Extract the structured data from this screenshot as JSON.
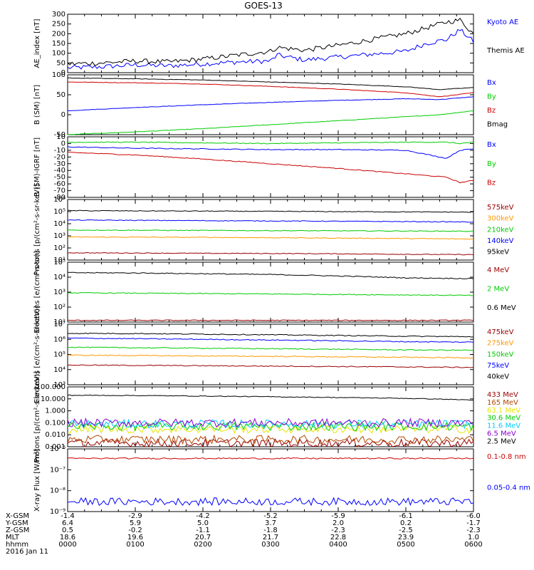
{
  "title": "GOES-13",
  "time_ticks": [
    "0000",
    "0100",
    "0200",
    "0300",
    "0400",
    "0500",
    "0600"
  ],
  "ephemeris": {
    "rows": [
      {
        "label": "X-GSM",
        "values": [
          "-1.4",
          "-2.9",
          "-4.2",
          "-5.2",
          "-5.9",
          "-6.1",
          "-6.0"
        ]
      },
      {
        "label": "Y-GSM",
        "values": [
          "6.4",
          "5.9",
          "5.0",
          "3.7",
          "2.0",
          "0.2",
          "-1.7"
        ]
      },
      {
        "label": "Z-GSM",
        "values": [
          "0.5",
          "-0.2",
          "-1.1",
          "-1.8",
          "-2.3",
          "-2.5",
          "-2.3"
        ]
      },
      {
        "label": "MLT",
        "values": [
          "18.6",
          "19.6",
          "20.7",
          "21.7",
          "22.8",
          "23.9",
          "1.0"
        ]
      },
      {
        "label": "hhmm",
        "values": [
          "0000",
          "0100",
          "0200",
          "0300",
          "0400",
          "0500",
          "0600"
        ]
      }
    ],
    "date": "2016 Jan 11"
  },
  "colors": {
    "black": "#000000",
    "blue": "#0000ff",
    "red": "#cc0000",
    "green": "#00cc00",
    "orange": "#ff9900",
    "yellow": "#e6e600",
    "cyan": "#00ccff",
    "purple": "#8800cc",
    "darkred": "#990000",
    "brown": "#b34700"
  },
  "chart_data": [
    {
      "type": "line",
      "ylabel": "AE_index [nT]",
      "ylim": [
        0,
        300
      ],
      "yticks": [
        "0",
        "50",
        "100",
        "150",
        "200",
        "250",
        "300"
      ],
      "yscale": "linear",
      "x_hours": [
        0,
        0.5,
        1,
        1.5,
        2,
        2.5,
        3,
        3.1,
        3.5,
        4,
        4.5,
        5,
        5.3,
        5.6,
        5.8,
        6
      ],
      "series": [
        {
          "name": "Kyoto AE",
          "color": "blue",
          "values": [
            25,
            30,
            40,
            35,
            45,
            55,
            60,
            90,
            65,
            80,
            95,
            110,
            150,
            170,
            220,
            160
          ]
        },
        {
          "name": "Themis AE",
          "color": "black",
          "values": [
            45,
            50,
            60,
            55,
            70,
            90,
            110,
            130,
            115,
            140,
            170,
            200,
            230,
            260,
            270,
            200
          ]
        }
      ]
    },
    {
      "type": "line",
      "ylabel": "B (SM) [nT]",
      "ylim": [
        -50,
        100
      ],
      "yticks": [
        "-50",
        "0",
        "50",
        "100"
      ],
      "yscale": "linear",
      "x_hours": [
        0,
        1,
        2,
        3,
        4,
        5,
        5.5,
        6
      ],
      "series": [
        {
          "name": "Bx",
          "color": "blue",
          "values": [
            10,
            18,
            25,
            31,
            36,
            40,
            38,
            45
          ]
        },
        {
          "name": "By",
          "color": "green",
          "values": [
            -50,
            -43,
            -35,
            -25,
            -15,
            -5,
            0,
            10
          ]
        },
        {
          "name": "Bz",
          "color": "red",
          "values": [
            82,
            80,
            77,
            71,
            64,
            55,
            45,
            55
          ]
        },
        {
          "name": "Bmag",
          "color": "black",
          "values": [
            92,
            90,
            87,
            82,
            77,
            70,
            63,
            68
          ]
        }
      ]
    },
    {
      "type": "line",
      "ylabel": "B (SM)-IGRF [nT]",
      "ylim": [
        -80,
        10
      ],
      "yticks": [
        "10",
        "0",
        "-10",
        "-20",
        "-30",
        "-40",
        "-50",
        "-60",
        "-70",
        "-80"
      ],
      "yscale": "linear",
      "x_hours": [
        0,
        1,
        2,
        3,
        4,
        5,
        5.6,
        5.8,
        6
      ],
      "series": [
        {
          "name": "Bx",
          "color": "blue",
          "values": [
            -5,
            -7,
            -8,
            -9,
            -9,
            -10,
            -22,
            -10,
            -8
          ]
        },
        {
          "name": "By",
          "color": "green",
          "values": [
            2,
            2,
            1,
            0,
            1,
            2,
            2,
            0,
            2
          ]
        },
        {
          "name": "Bz",
          "color": "red",
          "values": [
            -13,
            -17,
            -23,
            -30,
            -37,
            -45,
            -50,
            -58,
            -55
          ]
        }
      ]
    },
    {
      "type": "line",
      "ylabel": "Protons [p/(cm²-s-sr-keV)]",
      "yscale": "log",
      "ylim_exp": [
        1,
        6
      ],
      "yticks": [
        "10¹",
        "10²",
        "10³",
        "10⁴",
        "10⁵",
        "10⁶"
      ],
      "x_hours": [
        0,
        1,
        2,
        3,
        4,
        5,
        6
      ],
      "series": [
        {
          "name": "575keV",
          "color": "darkred",
          "values": [
            40,
            38,
            36,
            35,
            33,
            30,
            28
          ]
        },
        {
          "name": "300keV",
          "color": "orange",
          "values": [
            800,
            780,
            750,
            700,
            650,
            600,
            550
          ]
        },
        {
          "name": "210keV",
          "color": "green",
          "values": [
            3000,
            2900,
            2800,
            2700,
            2600,
            2500,
            2400
          ]
        },
        {
          "name": "140keV",
          "color": "blue",
          "values": [
            20000,
            19000,
            18000,
            17000,
            16000,
            15000,
            14000
          ]
        },
        {
          "name": "95keV",
          "color": "black",
          "values": [
            120000,
            115000,
            110000,
            105000,
            100000,
            95000,
            90000
          ]
        }
      ]
    },
    {
      "type": "line",
      "ylabel": "Electrons [e/(cm²-s-sr)]",
      "yscale": "log",
      "ylim_exp": [
        1,
        5
      ],
      "yticks": [
        "10¹",
        "10²",
        "10³",
        "10⁴",
        "10⁵"
      ],
      "x_hours": [
        0,
        1,
        2,
        3,
        4,
        5,
        6
      ],
      "series": [
        {
          "name": "4 MeV",
          "color": "darkred",
          "values": [
            13,
            13,
            13,
            13,
            13,
            13,
            13
          ]
        },
        {
          "name": "2 MeV",
          "color": "green",
          "values": [
            900,
            850,
            800,
            750,
            700,
            650,
            600
          ]
        },
        {
          "name": "0.6 MeV",
          "color": "black",
          "values": [
            20000,
            19000,
            17000,
            15000,
            12000,
            9000,
            8000
          ]
        }
      ]
    },
    {
      "type": "line",
      "ylabel": "Electrons [e/(cm²-s-sr-keV)]",
      "yscale": "log",
      "ylim_exp": [
        3,
        7
      ],
      "yticks": [
        "10³",
        "10⁴",
        "10⁵",
        "10⁶",
        "10⁷"
      ],
      "x_hours": [
        0,
        1,
        2,
        3,
        4,
        5,
        6
      ],
      "series": [
        {
          "name": "475keV",
          "color": "darkred",
          "values": [
            20000,
            19000,
            18000,
            17000,
            16000,
            15000,
            14000
          ]
        },
        {
          "name": "275keV",
          "color": "orange",
          "values": [
            90000,
            85000,
            80000,
            75000,
            70000,
            65000,
            60000
          ]
        },
        {
          "name": "150keV",
          "color": "green",
          "values": [
            300000,
            280000,
            260000,
            240000,
            220000,
            200000,
            190000
          ]
        },
        {
          "name": "75keV",
          "color": "blue",
          "values": [
            1200000,
            1100000,
            1000000,
            900000,
            800000,
            700000,
            650000
          ]
        },
        {
          "name": "40keV",
          "color": "black",
          "values": [
            2500000,
            2400000,
            2200000,
            2000000,
            1800000,
            1600000,
            1500000
          ]
        }
      ]
    },
    {
      "type": "line",
      "ylabel": "Protons [p/(cm²-s-sr-keV)]",
      "yscale": "log",
      "ylim_exp": [
        -3,
        2
      ],
      "yticks": [
        "0.001",
        "0.010",
        "0.100",
        "1.000",
        "10.000",
        "100.000"
      ],
      "x_hours": [
        0,
        1,
        2,
        3,
        4,
        5,
        6
      ],
      "series": [
        {
          "name": "433 MeV",
          "color": "darkred",
          "values": [
            0.002,
            0.002,
            0.002,
            0.002,
            0.002,
            0.002,
            0.002
          ]
        },
        {
          "name": "165 MeV",
          "color": "brown",
          "values": [
            0.004,
            0.004,
            0.004,
            0.004,
            0.004,
            0.004,
            0.004
          ]
        },
        {
          "name": "63.1 MeV",
          "color": "yellow",
          "values": [
            0.03,
            0.03,
            0.03,
            0.03,
            0.03,
            0.03,
            0.03
          ]
        },
        {
          "name": "30.6 MeV",
          "color": "green",
          "values": [
            0.05,
            0.05,
            0.05,
            0.05,
            0.05,
            0.05,
            0.05
          ]
        },
        {
          "name": "11.6 MeV",
          "color": "cyan",
          "values": [
            0.08,
            0.08,
            0.08,
            0.08,
            0.08,
            0.08,
            0.08
          ]
        },
        {
          "name": "6.5 MeV",
          "color": "purple",
          "values": [
            0.1,
            0.1,
            0.1,
            0.1,
            0.1,
            0.1,
            0.1
          ]
        },
        {
          "name": "2.5 MeV",
          "color": "black",
          "values": [
            20,
            19,
            17,
            15,
            13,
            11,
            8
          ]
        }
      ]
    },
    {
      "type": "line",
      "ylabel": "X-ray Flux [W/m²]",
      "yscale": "log",
      "ylim_exp": [
        -9,
        -6
      ],
      "yticks": [
        "10⁻⁹",
        "10⁻⁸",
        "10⁻⁷",
        "10⁻⁶"
      ],
      "x_hours": [
        0,
        1,
        2,
        3,
        4,
        5,
        6
      ],
      "series": [
        {
          "name": "0.1-0.8 nm",
          "color": "red",
          "values": [
            3.5e-07,
            3.5e-07,
            3.5e-07,
            3.5e-07,
            3.5e-07,
            3.5e-07,
            3.5e-07
          ]
        },
        {
          "name": "0.05-0.4 nm",
          "color": "blue",
          "values": [
            3e-09,
            3e-09,
            3e-09,
            3e-09,
            3e-09,
            3e-09,
            3e-09
          ]
        }
      ]
    }
  ]
}
